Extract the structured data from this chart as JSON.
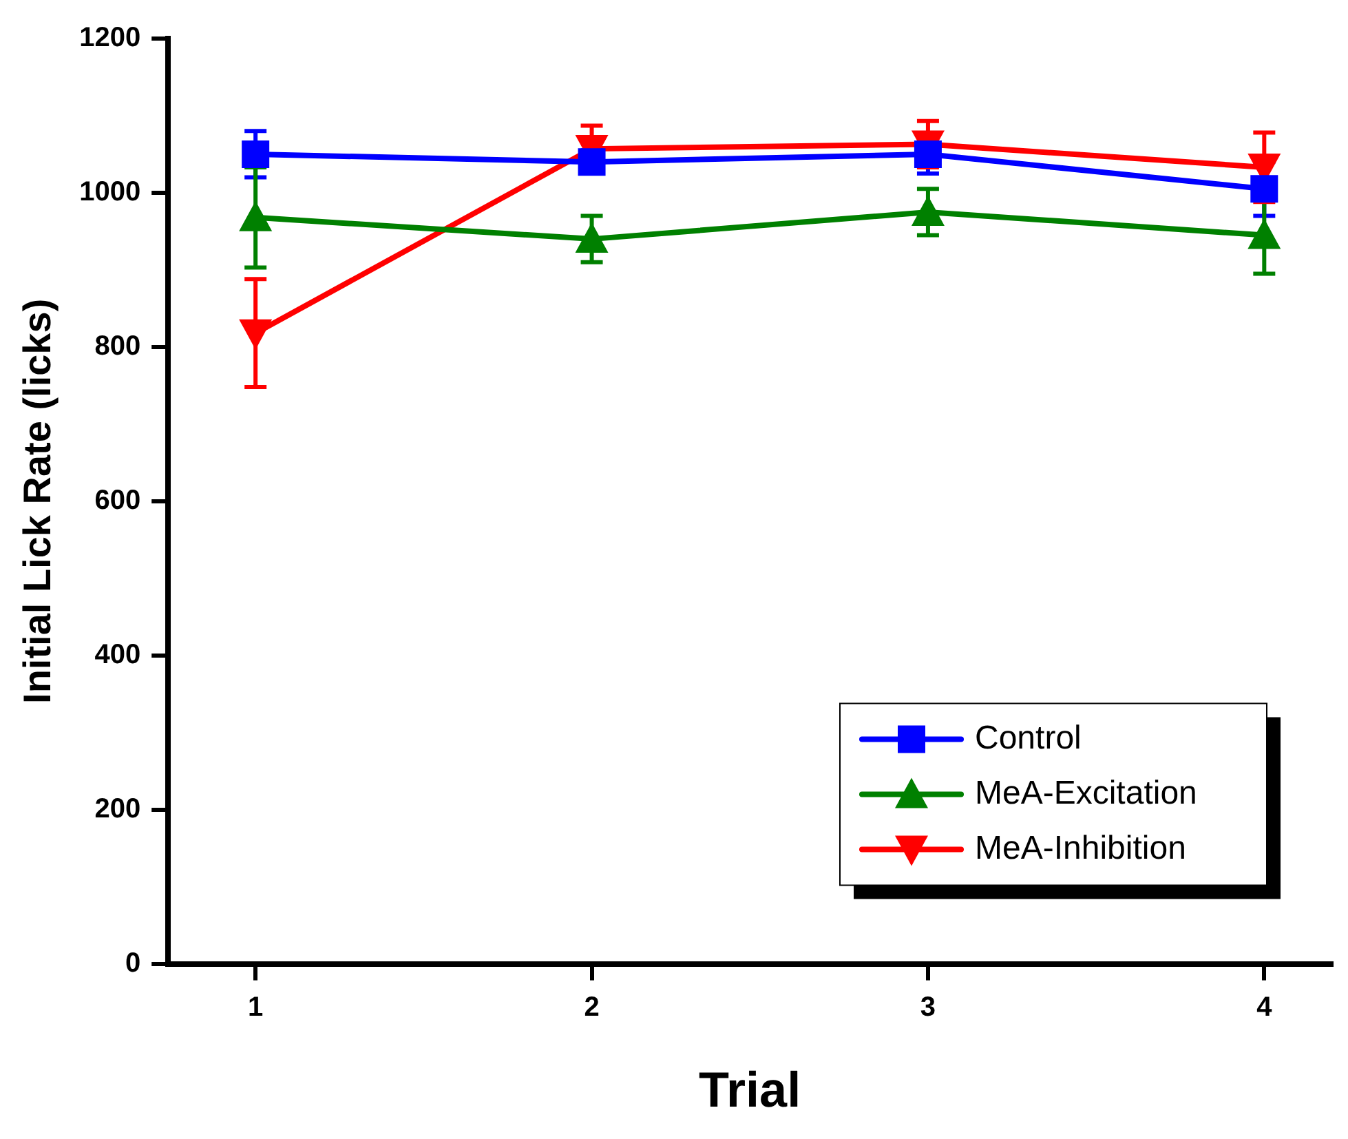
{
  "chart_data": {
    "type": "line",
    "xlabel": "Trial",
    "ylabel": "Initial Lick Rate (licks)",
    "x": [
      1,
      2,
      3,
      4
    ],
    "xlim": [
      0.74,
      4.2
    ],
    "xticks": [
      1,
      2,
      3,
      4
    ],
    "ylim": [
      0,
      1200
    ],
    "yticks": [
      0,
      200,
      400,
      600,
      800,
      1000,
      1200
    ],
    "grid": false,
    "legend": "bottom right",
    "series": [
      {
        "name": "Control",
        "color": "#0000ff",
        "marker": "square",
        "values": [
          1050,
          1040,
          1050,
          1005
        ],
        "errors": [
          30,
          15,
          25,
          35
        ]
      },
      {
        "name": "MeA-Excitation",
        "color": "#008000",
        "marker": "triangle",
        "values": [
          968,
          940,
          975,
          945
        ],
        "errors": [
          65,
          30,
          30,
          50
        ]
      },
      {
        "name": "MeA-Inhibition",
        "color": "#ff0000",
        "marker": "triangle-down",
        "values": [
          818,
          1057,
          1063,
          1033
        ],
        "errors": [
          70,
          30,
          30,
          45
        ]
      }
    ]
  }
}
